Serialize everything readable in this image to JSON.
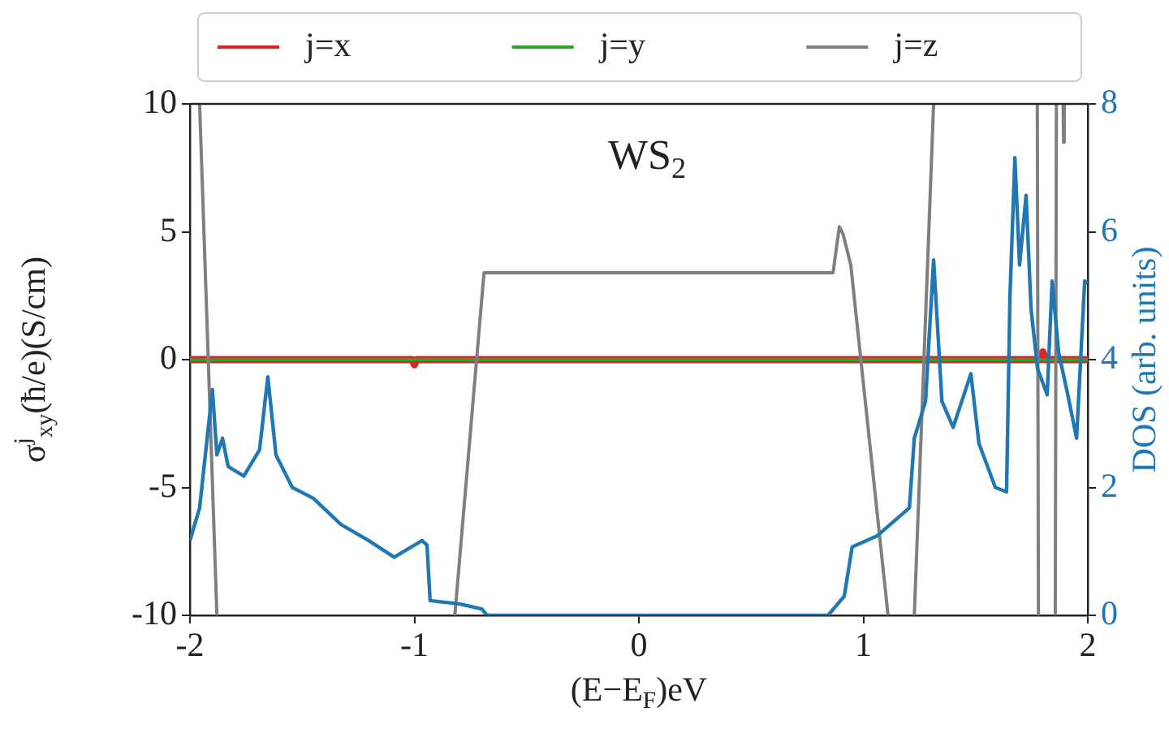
{
  "chart_data": {
    "type": "line",
    "xlabel": "(E−E$_{F}$)eV",
    "ylabel": "σ$^{j}$$_{xy}$(ħ/e)(S/cm)",
    "y2label": "DOS (arb. units)",
    "annotations": [
      "WS$_{2}$"
    ],
    "xlim": [
      -2,
      2
    ],
    "xticks": [
      -2,
      -1,
      0,
      1,
      2
    ],
    "ylim": [
      -10,
      10
    ],
    "yticks": [
      -10,
      -5,
      0,
      5,
      10
    ],
    "y2lim": [
      0,
      8
    ],
    "y2ticks": [
      0,
      2,
      4,
      6,
      8
    ],
    "grid": false,
    "legend": "top",
    "marker": "none",
    "line_style": "solid",
    "series": [
      {
        "name": "j=x",
        "color": "#d62728",
        "x": [
          -2,
          -1.01,
          -1,
          -0.99,
          1.79,
          1.8,
          1.81,
          2
        ],
        "values": [
          0,
          0,
          -0.2,
          0,
          0,
          0.3,
          0,
          0
        ]
      },
      {
        "name": "j=y",
        "color": "#2ca02c",
        "x": [
          -2,
          2
        ],
        "values": [
          0,
          0
        ]
      },
      {
        "name": "j=z",
        "color": "#7f7f7f",
        "x": [
          -1.957,
          -1.88,
          -1.5,
          -0.82,
          -0.69,
          0.865,
          0.893,
          0.91,
          0.944,
          1.11,
          1.17,
          1.227,
          1.313,
          1.5,
          1.775,
          1.78,
          1.82,
          1.855,
          1.86,
          1.875,
          1.89,
          1.892,
          1.895
        ],
        "values": [
          10,
          -10,
          null,
          -10,
          3.4,
          3.4,
          5.2,
          4.9,
          3.7,
          -10,
          null,
          -10,
          10,
          null,
          10,
          -10,
          null,
          -10,
          10,
          null,
          10,
          8.5,
          10
        ]
      },
      {
        "type": "line",
        "axis": "y2",
        "color": "#1f77b4",
        "x": [
          -2,
          -1.957,
          -1.9,
          -1.88,
          -1.855,
          -1.83,
          -1.76,
          -1.69,
          -1.653,
          -1.617,
          -1.544,
          -1.45,
          -1.327,
          -1.204,
          -1.09,
          -0.966,
          -0.944,
          -0.93,
          -0.8,
          -0.7,
          -0.676,
          0.843,
          0.915,
          0.95,
          1.06,
          1.205,
          1.227,
          1.277,
          1.313,
          1.35,
          1.4,
          1.479,
          1.515,
          1.588,
          1.638,
          1.653,
          1.675,
          1.696,
          1.725,
          1.747,
          1.776,
          1.819,
          1.841,
          1.87,
          1.906,
          1.95,
          1.986,
          2
        ],
        "values": [
          1.17,
          1.68,
          3.53,
          2.51,
          2.77,
          2.33,
          2.18,
          2.59,
          3.73,
          2.51,
          2.0,
          1.83,
          1.42,
          1.17,
          0.91,
          1.17,
          1.1,
          0.23,
          0.18,
          0.1,
          0,
          0,
          0.3,
          1.07,
          1.24,
          1.68,
          2.77,
          3.35,
          5.56,
          3.35,
          2.94,
          3.78,
          2.69,
          2.0,
          1.93,
          4.97,
          7.16,
          5.48,
          6.57,
          4.8,
          3.86,
          3.45,
          5.23,
          4.11,
          3.53,
          2.77,
          5.23,
          5.2
        ]
      }
    ]
  }
}
